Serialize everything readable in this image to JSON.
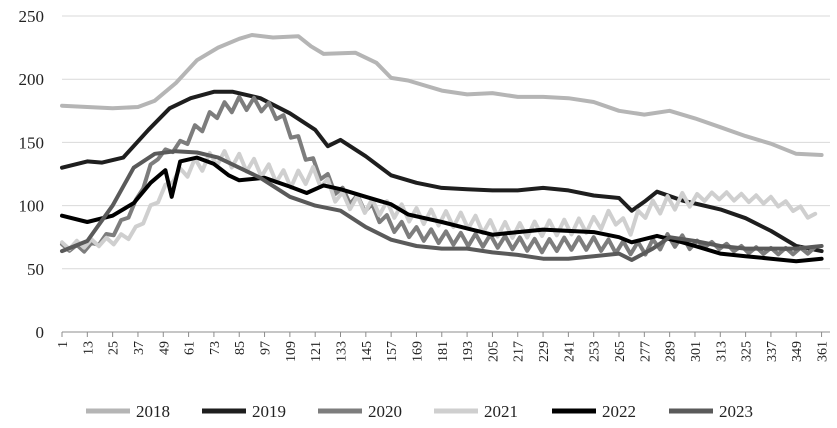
{
  "chart_data": {
    "type": "line",
    "title": "",
    "xlabel": "",
    "ylabel": "",
    "ylim": [
      0,
      250
    ],
    "yticks": [
      0,
      50,
      100,
      150,
      200,
      250
    ],
    "xlim": [
      1,
      365
    ],
    "xticks": [
      1,
      13,
      25,
      37,
      49,
      61,
      73,
      85,
      97,
      109,
      121,
      133,
      145,
      157,
      169,
      181,
      193,
      205,
      217,
      229,
      241,
      253,
      265,
      277,
      289,
      301,
      313,
      325,
      337,
      349,
      361
    ],
    "grid": "horizontal",
    "legend": "bottom",
    "series": [
      {
        "name": "2018",
        "color": "#b5b5b5",
        "width": 4,
        "points": [
          [
            1,
            179
          ],
          [
            13,
            178
          ],
          [
            25,
            177
          ],
          [
            37,
            178
          ],
          [
            45,
            183
          ],
          [
            55,
            197
          ],
          [
            65,
            215
          ],
          [
            75,
            225
          ],
          [
            85,
            232
          ],
          [
            91,
            235
          ],
          [
            101,
            233
          ],
          [
            113,
            234
          ],
          [
            119,
            226
          ],
          [
            125,
            220
          ],
          [
            140,
            221
          ],
          [
            150,
            213
          ],
          [
            157,
            201
          ],
          [
            165,
            199
          ],
          [
            181,
            191
          ],
          [
            193,
            188
          ],
          [
            205,
            189
          ],
          [
            217,
            186
          ],
          [
            229,
            186
          ],
          [
            241,
            185
          ],
          [
            253,
            182
          ],
          [
            265,
            175
          ],
          [
            277,
            172
          ],
          [
            289,
            175
          ],
          [
            301,
            169
          ],
          [
            313,
            162
          ],
          [
            325,
            155
          ],
          [
            337,
            149
          ],
          [
            349,
            141
          ],
          [
            361,
            140
          ]
        ]
      },
      {
        "name": "2019",
        "color": "#1e1e1e",
        "width": 4,
        "points": [
          [
            1,
            130
          ],
          [
            13,
            135
          ],
          [
            20,
            134
          ],
          [
            30,
            138
          ],
          [
            42,
            160
          ],
          [
            52,
            177
          ],
          [
            62,
            185
          ],
          [
            73,
            190
          ],
          [
            82,
            190
          ],
          [
            95,
            185
          ],
          [
            109,
            173
          ],
          [
            121,
            160
          ],
          [
            127,
            147
          ],
          [
            133,
            152
          ],
          [
            145,
            139
          ],
          [
            157,
            124
          ],
          [
            169,
            118
          ],
          [
            181,
            114
          ],
          [
            193,
            113
          ],
          [
            205,
            112
          ],
          [
            217,
            112
          ],
          [
            229,
            114
          ],
          [
            241,
            112
          ],
          [
            253,
            108
          ],
          [
            265,
            106
          ],
          [
            271,
            96
          ],
          [
            277,
            103
          ],
          [
            283,
            111
          ],
          [
            295,
            104
          ],
          [
            313,
            97
          ],
          [
            325,
            90
          ],
          [
            337,
            80
          ],
          [
            349,
            68
          ],
          [
            361,
            64
          ]
        ]
      },
      {
        "name": "2020",
        "color": "#7d7d7d",
        "width": 4,
        "zigzag": 10,
        "points": [
          [
            1,
            67
          ],
          [
            13,
            66
          ],
          [
            25,
            78
          ],
          [
            35,
            98
          ],
          [
            45,
            138
          ],
          [
            55,
            146
          ],
          [
            65,
            160
          ],
          [
            75,
            175
          ],
          [
            85,
            181
          ],
          [
            95,
            180
          ],
          [
            103,
            173
          ],
          [
            109,
            160
          ],
          [
            121,
            130
          ],
          [
            133,
            110
          ],
          [
            145,
            100
          ],
          [
            157,
            85
          ],
          [
            169,
            78
          ],
          [
            181,
            75
          ],
          [
            193,
            73
          ],
          [
            205,
            72
          ],
          [
            217,
            70
          ],
          [
            229,
            68
          ],
          [
            241,
            70
          ],
          [
            253,
            70
          ],
          [
            265,
            67
          ],
          [
            277,
            66
          ],
          [
            289,
            73
          ],
          [
            301,
            70
          ],
          [
            313,
            68
          ],
          [
            325,
            65
          ],
          [
            337,
            64
          ],
          [
            349,
            64
          ],
          [
            361,
            65
          ]
        ]
      },
      {
        "name": "2021",
        "color": "#cfcfcf",
        "width": 4,
        "zigzag": 12,
        "points": [
          [
            1,
            68
          ],
          [
            13,
            70
          ],
          [
            25,
            72
          ],
          [
            35,
            78
          ],
          [
            45,
            102
          ],
          [
            55,
            125
          ],
          [
            65,
            132
          ],
          [
            75,
            138
          ],
          [
            85,
            135
          ],
          [
            97,
            128
          ],
          [
            109,
            120
          ],
          [
            121,
            125
          ],
          [
            133,
            105
          ],
          [
            145,
            100
          ],
          [
            157,
            97
          ],
          [
            169,
            92
          ],
          [
            181,
            90
          ],
          [
            193,
            88
          ],
          [
            205,
            82
          ],
          [
            217,
            80
          ],
          [
            229,
            82
          ],
          [
            241,
            83
          ],
          [
            253,
            85
          ],
          [
            263,
            92
          ],
          [
            269,
            80
          ],
          [
            277,
            96
          ],
          [
            289,
            102
          ],
          [
            301,
            106
          ],
          [
            313,
            108
          ],
          [
            325,
            106
          ],
          [
            337,
            104
          ],
          [
            349,
            98
          ],
          [
            361,
            88
          ]
        ]
      },
      {
        "name": "2022",
        "color": "#000000",
        "width": 4,
        "points": [
          [
            1,
            92
          ],
          [
            13,
            87
          ],
          [
            25,
            92
          ],
          [
            35,
            102
          ],
          [
            43,
            118
          ],
          [
            50,
            128
          ],
          [
            53,
            107
          ],
          [
            57,
            135
          ],
          [
            65,
            138
          ],
          [
            73,
            133
          ],
          [
            80,
            124
          ],
          [
            85,
            120
          ],
          [
            97,
            122
          ],
          [
            109,
            115
          ],
          [
            117,
            110
          ],
          [
            125,
            116
          ],
          [
            133,
            113
          ],
          [
            145,
            107
          ],
          [
            157,
            101
          ],
          [
            165,
            93
          ],
          [
            181,
            87
          ],
          [
            193,
            82
          ],
          [
            205,
            77
          ],
          [
            217,
            79
          ],
          [
            229,
            81
          ],
          [
            241,
            80
          ],
          [
            253,
            79
          ],
          [
            265,
            75
          ],
          [
            271,
            71
          ],
          [
            283,
            76
          ],
          [
            295,
            71
          ],
          [
            301,
            68
          ],
          [
            313,
            62
          ],
          [
            325,
            60
          ],
          [
            337,
            58
          ],
          [
            349,
            56
          ],
          [
            361,
            58
          ]
        ]
      },
      {
        "name": "2023",
        "color": "#5a5a5a",
        "width": 4,
        "points": [
          [
            1,
            64
          ],
          [
            13,
            72
          ],
          [
            25,
            100
          ],
          [
            35,
            130
          ],
          [
            45,
            141
          ],
          [
            55,
            143
          ],
          [
            65,
            142
          ],
          [
            75,
            138
          ],
          [
            85,
            130
          ],
          [
            95,
            122
          ],
          [
            109,
            107
          ],
          [
            121,
            100
          ],
          [
            133,
            96
          ],
          [
            145,
            83
          ],
          [
            157,
            73
          ],
          [
            169,
            68
          ],
          [
            181,
            66
          ],
          [
            193,
            66
          ],
          [
            205,
            63
          ],
          [
            217,
            61
          ],
          [
            229,
            58
          ],
          [
            241,
            58
          ],
          [
            253,
            60
          ],
          [
            265,
            62
          ],
          [
            271,
            57
          ],
          [
            281,
            66
          ],
          [
            289,
            75
          ],
          [
            301,
            72
          ],
          [
            313,
            68
          ],
          [
            325,
            66
          ],
          [
            337,
            66
          ],
          [
            349,
            66
          ],
          [
            361,
            68
          ]
        ]
      }
    ]
  }
}
